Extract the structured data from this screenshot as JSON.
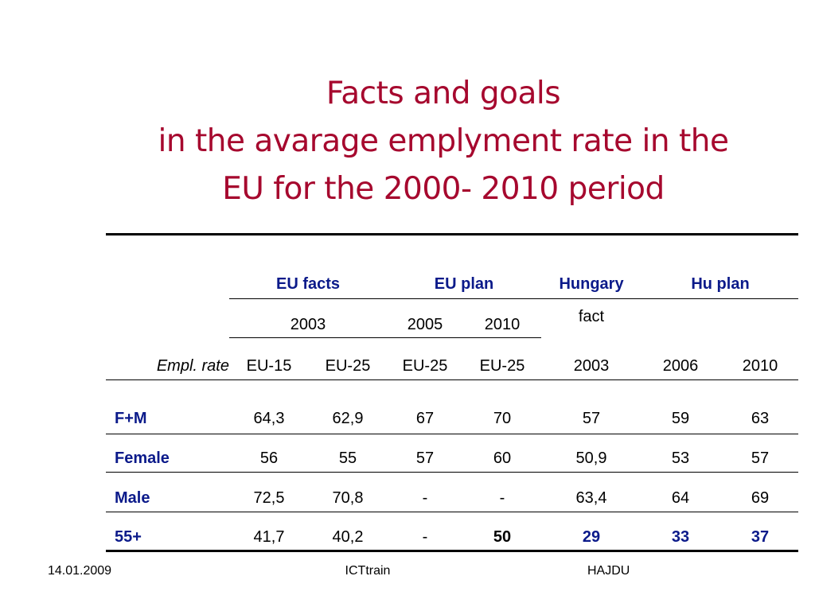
{
  "title": {
    "line1": "Facts and goals",
    "line2": "in the avarage emplyment rate in the",
    "line3": "EU for the 2000- 2010 period"
  },
  "table": {
    "group_headers": [
      "EU facts",
      "EU plan",
      "Hungary",
      "Hu plan"
    ],
    "year_headers": {
      "eu_facts": "2003",
      "eu_plan_1": "2005",
      "eu_plan_2": "2010",
      "hungary_fact": "fact"
    },
    "row_label": "Empl. rate",
    "subheaders": [
      "EU-15",
      "EU-25",
      "EU-25",
      "EU-25",
      "2003",
      "2006",
      "2010"
    ],
    "rows": [
      {
        "label": "F+M",
        "values": [
          "64,3",
          "62,9",
          "67",
          "70",
          "57",
          "59",
          "63"
        ]
      },
      {
        "label": "Female",
        "values": [
          "56",
          "55",
          "57",
          "60",
          "50,9",
          "53",
          "57"
        ]
      },
      {
        "label": "Male",
        "values": [
          "72,5",
          "70,8",
          "-",
          "-",
          "63,4",
          "64",
          "69"
        ]
      },
      {
        "label": "55+",
        "values": [
          "41,7",
          "40,2",
          "-",
          "50",
          "29",
          "33",
          "37"
        ]
      }
    ]
  },
  "footer": {
    "date": "14.01.2009",
    "center": "ICTtrain",
    "author": "HAJDU"
  },
  "colors": {
    "title": "#a6082e",
    "header": "#0b1a8a",
    "text": "#000000"
  }
}
